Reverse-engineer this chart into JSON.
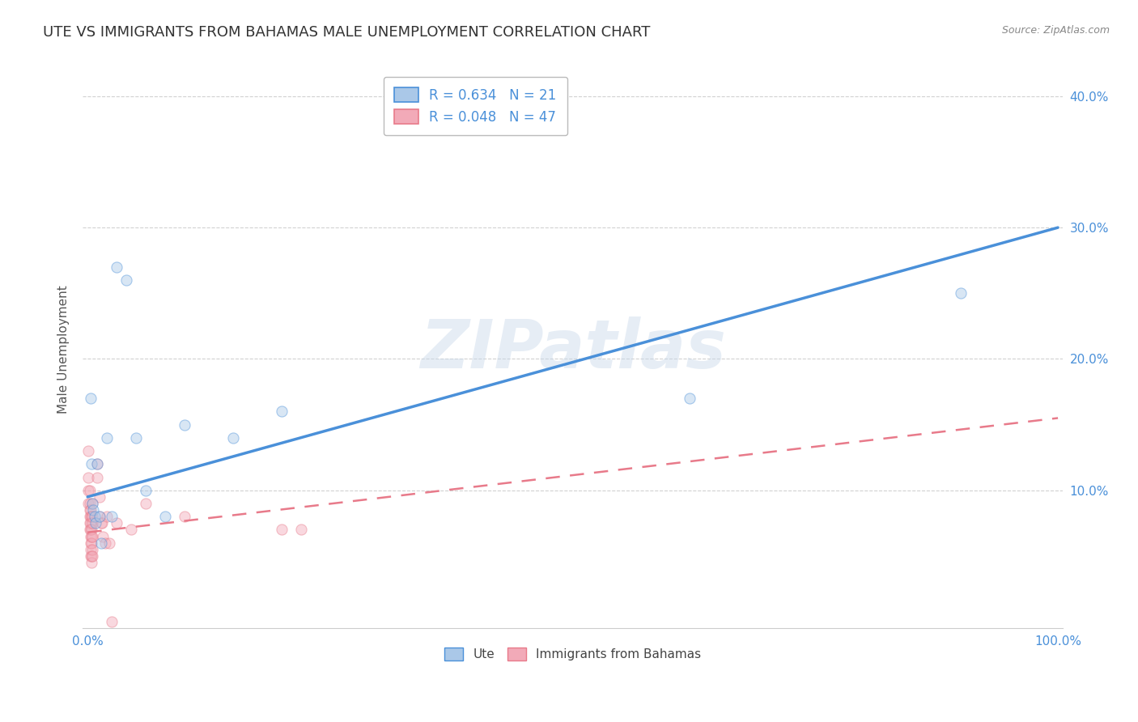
{
  "title": "UTE VS IMMIGRANTS FROM BAHAMAS MALE UNEMPLOYMENT CORRELATION CHART",
  "source": "Source: ZipAtlas.com",
  "ylabel": "Male Unemployment",
  "watermark": "ZIPatlas",
  "legend_ute_R": "R = 0.634",
  "legend_ute_N": "N = 21",
  "legend_bah_R": "R = 0.048",
  "legend_bah_N": "N = 47",
  "ute_color": "#aac8e8",
  "bah_color": "#f2aab8",
  "ute_line_color": "#4a90d9",
  "bah_line_color": "#e87a8a",
  "xlim": [
    -0.005,
    1.005
  ],
  "ylim": [
    -0.005,
    0.42
  ],
  "yticks": [
    0.1,
    0.2,
    0.3,
    0.4
  ],
  "ute_x": [
    0.003,
    0.004,
    0.005,
    0.006,
    0.007,
    0.008,
    0.01,
    0.012,
    0.014,
    0.02,
    0.025,
    0.03,
    0.04,
    0.05,
    0.06,
    0.08,
    0.1,
    0.15,
    0.2,
    0.62,
    0.9
  ],
  "ute_y": [
    0.17,
    0.12,
    0.09,
    0.085,
    0.08,
    0.075,
    0.12,
    0.08,
    0.06,
    0.14,
    0.08,
    0.27,
    0.26,
    0.14,
    0.1,
    0.08,
    0.15,
    0.14,
    0.16,
    0.17,
    0.25
  ],
  "bah_x": [
    0.001,
    0.001,
    0.001,
    0.001,
    0.002,
    0.002,
    0.002,
    0.002,
    0.002,
    0.002,
    0.003,
    0.003,
    0.003,
    0.003,
    0.003,
    0.003,
    0.003,
    0.003,
    0.004,
    0.004,
    0.004,
    0.004,
    0.004,
    0.004,
    0.005,
    0.005,
    0.005,
    0.005,
    0.005,
    0.005,
    0.01,
    0.01,
    0.012,
    0.012,
    0.014,
    0.015,
    0.016,
    0.018,
    0.02,
    0.022,
    0.025,
    0.03,
    0.045,
    0.06,
    0.1,
    0.2,
    0.22
  ],
  "bah_y": [
    0.13,
    0.11,
    0.1,
    0.09,
    0.1,
    0.09,
    0.085,
    0.08,
    0.075,
    0.07,
    0.085,
    0.08,
    0.075,
    0.07,
    0.065,
    0.06,
    0.055,
    0.05,
    0.08,
    0.07,
    0.065,
    0.06,
    0.05,
    0.045,
    0.09,
    0.08,
    0.075,
    0.065,
    0.055,
    0.05,
    0.12,
    0.11,
    0.095,
    0.08,
    0.075,
    0.075,
    0.065,
    0.06,
    0.08,
    0.06,
    0.0,
    0.075,
    0.07,
    0.09,
    0.08,
    0.07,
    0.07
  ],
  "background_color": "#ffffff",
  "grid_color": "#cccccc",
  "title_fontsize": 13,
  "axis_label_fontsize": 11,
  "tick_fontsize": 11,
  "marker_size": 90,
  "marker_alpha": 0.45,
  "marker_edge_width": 0.8,
  "ute_line_y0": 0.095,
  "ute_line_y1": 0.3,
  "bah_line_y0": 0.068,
  "bah_line_y1": 0.155
}
